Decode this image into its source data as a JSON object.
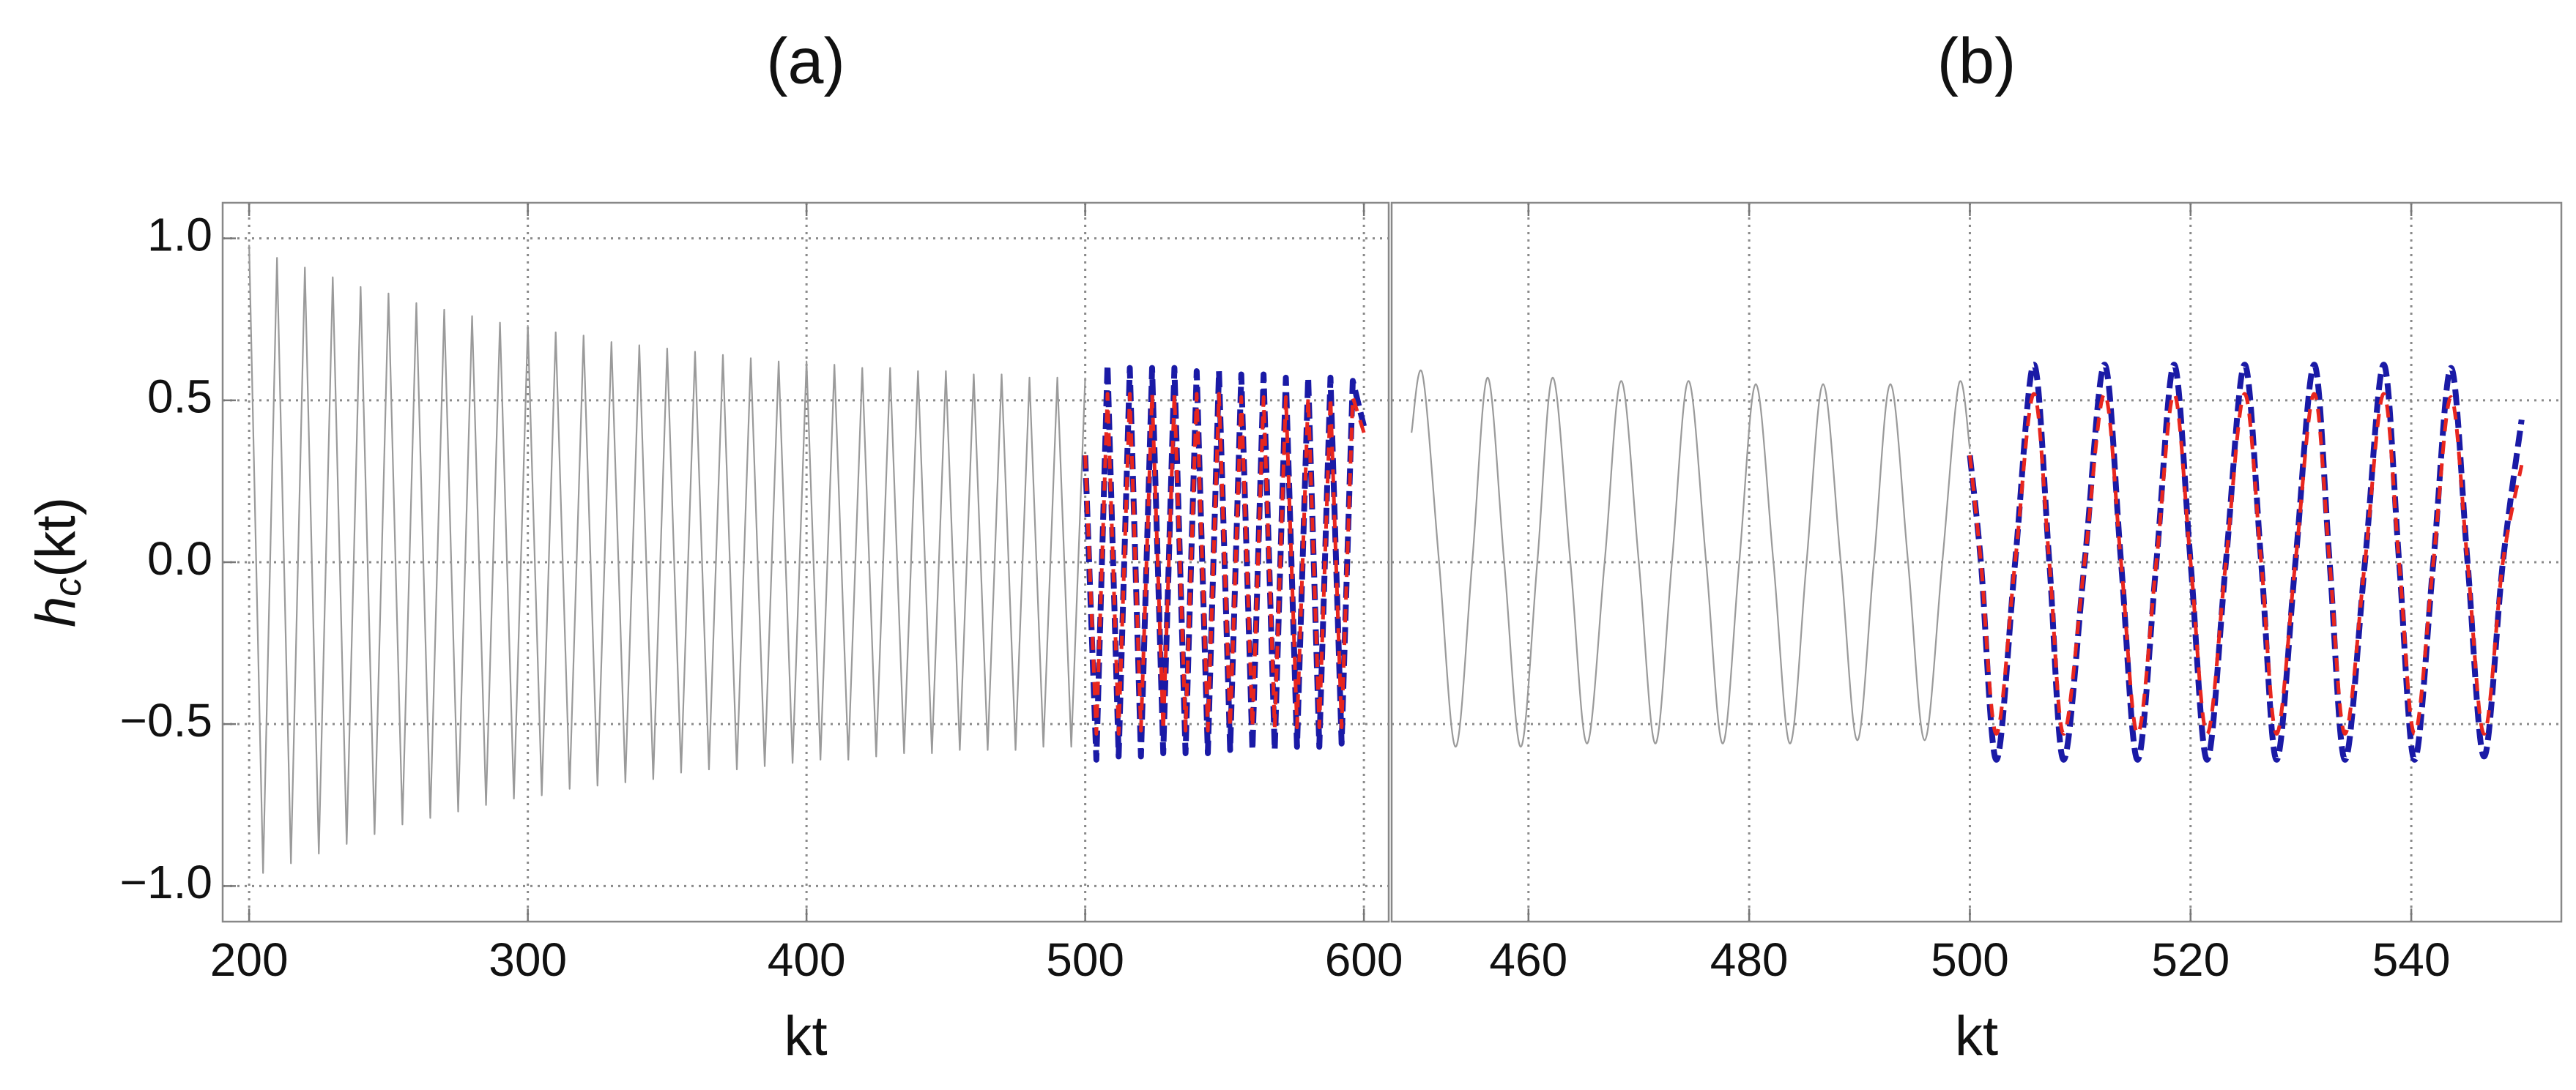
{
  "chart_data": [
    {
      "type": "line",
      "title": "(a)",
      "x_label": "kt",
      "y_label": [
        "h",
        "c",
        "(kt)"
      ],
      "xlim": [
        190.5,
        608.9
      ],
      "ylim": [
        -1.11,
        1.11
      ],
      "xticks": [
        200,
        300,
        400,
        500,
        600
      ],
      "yticks": [
        {
          "value": -1,
          "label": "−1.0"
        },
        {
          "value": -0.5,
          "label": "−0.5"
        },
        {
          "value": 0,
          "label": "0.0"
        },
        {
          "value": 0.5,
          "label": "0.5"
        },
        {
          "value": 1,
          "label": "1.0"
        }
      ],
      "show_ytick_labels": true,
      "grid": true,
      "smooth": false,
      "series": [
        {
          "color": "#9a9a9a",
          "style": "solid",
          "x": [
            200,
            205,
            210,
            215,
            220,
            225,
            230,
            235,
            240,
            245,
            250,
            255,
            260,
            265,
            270,
            275,
            280,
            285,
            290,
            295,
            300,
            305,
            310,
            315,
            320,
            325,
            330,
            335,
            340,
            345,
            350,
            355,
            360,
            365,
            370,
            375,
            380,
            385,
            390,
            395,
            400,
            405,
            410,
            415,
            420,
            425,
            430,
            435,
            440,
            445,
            450,
            455,
            460,
            465,
            470,
            475,
            480,
            485,
            490,
            495,
            500
          ],
          "values": [
            0.98,
            -0.96,
            0.94,
            -0.93,
            0.91,
            -0.9,
            0.88,
            -0.87,
            0.85,
            -0.84,
            0.83,
            -0.81,
            0.8,
            -0.79,
            0.78,
            -0.77,
            0.76,
            -0.75,
            0.74,
            -0.73,
            0.73,
            -0.72,
            0.71,
            -0.7,
            0.7,
            -0.69,
            0.68,
            -0.68,
            0.67,
            -0.67,
            0.66,
            -0.65,
            0.65,
            -0.64,
            0.64,
            -0.64,
            0.63,
            -0.63,
            0.62,
            -0.62,
            0.62,
            -0.61,
            0.61,
            -0.61,
            0.6,
            -0.6,
            0.6,
            -0.59,
            0.59,
            -0.59,
            0.59,
            -0.58,
            0.58,
            -0.58,
            0.58,
            -0.58,
            0.57,
            -0.57,
            0.57,
            -0.57,
            0.57
          ]
        },
        {
          "color": "#1a1aa6",
          "style": "dashed",
          "x": [
            500,
            504,
            508,
            512,
            516,
            520,
            524,
            528,
            532,
            536,
            540,
            544,
            548,
            552,
            556,
            560,
            564,
            568,
            572,
            576,
            580,
            584,
            588,
            592,
            596,
            600
          ],
          "values": [
            0.33,
            -0.61,
            0.61,
            -0.6,
            0.6,
            -0.6,
            0.6,
            -0.59,
            0.6,
            -0.59,
            0.59,
            -0.59,
            0.59,
            -0.58,
            0.58,
            -0.58,
            0.58,
            -0.58,
            0.57,
            -0.57,
            0.57,
            -0.57,
            0.57,
            -0.56,
            0.56,
            0.42
          ]
        },
        {
          "color": "#e8261e",
          "style": "dashed",
          "x": [
            500,
            504,
            508,
            512,
            516,
            520,
            524,
            528,
            532,
            536,
            540,
            544,
            548,
            552,
            556,
            560,
            564,
            568,
            572,
            576,
            580,
            584,
            588,
            592,
            596,
            600
          ],
          "values": [
            0.33,
            -0.53,
            0.52,
            -0.53,
            0.52,
            -0.52,
            0.52,
            -0.52,
            0.52,
            -0.52,
            0.52,
            -0.52,
            0.52,
            -0.51,
            0.51,
            -0.51,
            0.51,
            -0.51,
            0.51,
            -0.51,
            0.51,
            -0.51,
            0.51,
            -0.51,
            0.51,
            0.4
          ]
        }
      ]
    },
    {
      "type": "line",
      "title": "(b)",
      "x_label": "kt",
      "xlim": [
        447.6,
        553.6
      ],
      "ylim": [
        -1.11,
        1.11
      ],
      "xticks": [
        460,
        480,
        500,
        520,
        540
      ],
      "yticks": [
        -0.5,
        0,
        0.5
      ],
      "show_ytick_labels": false,
      "grid": true,
      "smooth": true,
      "series": [
        {
          "color": "#9a9a9a",
          "style": "solid",
          "x": [
            449.4,
            450.4,
            451.9,
            453.4,
            454.9,
            456.3,
            457.8,
            459.3,
            460.8,
            462.2,
            463.8,
            465.3,
            466.9,
            468.4,
            470.0,
            471.5,
            473.0,
            474.5,
            476.1,
            477.6,
            479.1,
            480.6,
            482.2,
            483.7,
            485.2,
            486.7,
            488.3,
            489.8,
            491.3,
            492.8,
            494.4,
            495.9,
            497.5,
            499.0,
            500
          ],
          "values": [
            0.4,
            0.58,
            0,
            -0.57,
            0,
            0.57,
            0,
            -0.57,
            0,
            0.57,
            0,
            -0.56,
            0,
            0.56,
            0,
            -0.56,
            0,
            0.56,
            0,
            -0.56,
            0,
            0.55,
            0,
            -0.56,
            0,
            0.55,
            0,
            -0.55,
            0,
            0.55,
            0,
            -0.55,
            0,
            0.55,
            0.35
          ]
        },
        {
          "color": "#1a1aa6",
          "style": "dashed",
          "x": [
            500,
            501.0,
            502.4,
            504.1,
            505.8,
            507.2,
            508.5,
            510.4,
            512.2,
            513.7,
            515.2,
            516.9,
            518.5,
            520.0,
            521.5,
            523.2,
            524.9,
            526.4,
            527.8,
            529.5,
            531.2,
            532.6,
            534.0,
            535.8,
            537.5,
            538.9,
            540.3,
            542.0,
            543.6,
            545.1,
            546.6,
            548.3,
            550
          ],
          "values": [
            0.33,
            0,
            -0.61,
            0,
            0.61,
            0,
            -0.61,
            0,
            0.61,
            0,
            -0.61,
            0,
            0.61,
            0,
            -0.61,
            0,
            0.61,
            0,
            -0.61,
            0,
            0.61,
            0,
            -0.61,
            0,
            0.61,
            0,
            -0.61,
            0,
            0.6,
            0,
            -0.6,
            0,
            0.44
          ]
        },
        {
          "color": "#e8261e",
          "style": "dashed",
          "x": [
            500,
            501.0,
            502.4,
            504.1,
            505.8,
            507.2,
            508.5,
            510.4,
            512.2,
            513.7,
            515.2,
            516.9,
            518.5,
            520.0,
            521.5,
            523.2,
            524.9,
            526.4,
            527.8,
            529.5,
            531.2,
            532.6,
            534.0,
            535.8,
            537.5,
            538.9,
            540.3,
            542.0,
            543.6,
            545.1,
            546.6,
            548.3,
            550
          ],
          "values": [
            0.33,
            0,
            -0.53,
            0,
            0.52,
            0,
            -0.53,
            0,
            0.52,
            0,
            -0.53,
            0,
            0.52,
            0,
            -0.53,
            0,
            0.52,
            0,
            -0.53,
            0,
            0.52,
            0,
            -0.53,
            0,
            0.52,
            0,
            -0.53,
            0,
            0.51,
            0,
            -0.53,
            0,
            0.3
          ]
        }
      ]
    }
  ]
}
